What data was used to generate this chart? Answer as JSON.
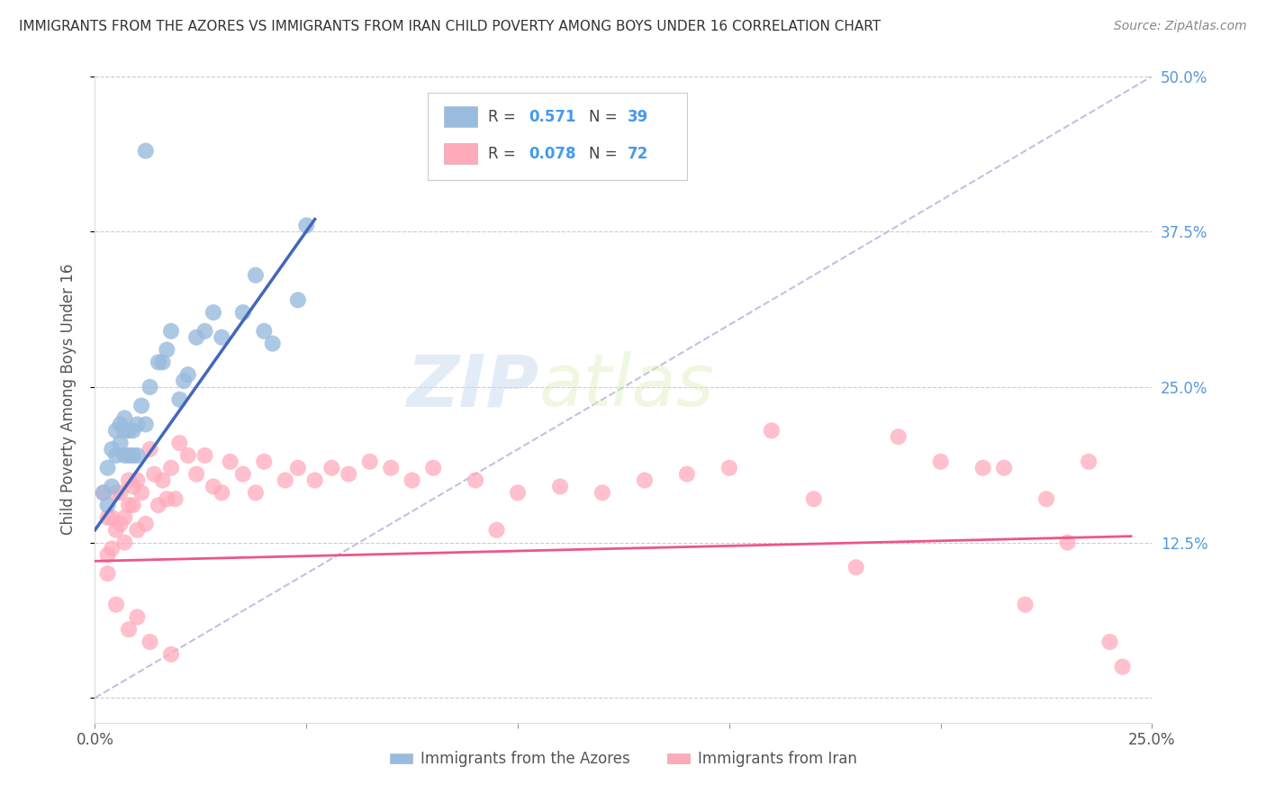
{
  "title": "IMMIGRANTS FROM THE AZORES VS IMMIGRANTS FROM IRAN CHILD POVERTY AMONG BOYS UNDER 16 CORRELATION CHART",
  "source": "Source: ZipAtlas.com",
  "ylabel": "Child Poverty Among Boys Under 16",
  "xlim": [
    0.0,
    0.25
  ],
  "ylim": [
    -0.02,
    0.5
  ],
  "legend_label1": "Immigrants from the Azores",
  "legend_label2": "Immigrants from Iran",
  "r1": 0.571,
  "n1": 39,
  "r2": 0.078,
  "n2": 72,
  "color_azores": "#99BBDD",
  "color_iran": "#FFAABB",
  "color_line_azores": "#4466BB",
  "color_line_iran": "#EE5588",
  "color_diag": "#BBBBDD",
  "watermark_zip": "ZIP",
  "watermark_atlas": "atlas",
  "azores_x": [
    0.002,
    0.003,
    0.003,
    0.004,
    0.004,
    0.005,
    0.005,
    0.006,
    0.006,
    0.007,
    0.007,
    0.007,
    0.008,
    0.008,
    0.009,
    0.009,
    0.01,
    0.01,
    0.011,
    0.012,
    0.013,
    0.015,
    0.016,
    0.017,
    0.018,
    0.02,
    0.021,
    0.022,
    0.024,
    0.026,
    0.028,
    0.03,
    0.035,
    0.038,
    0.04,
    0.042,
    0.048,
    0.05,
    0.012
  ],
  "azores_y": [
    0.165,
    0.185,
    0.155,
    0.2,
    0.17,
    0.215,
    0.195,
    0.22,
    0.205,
    0.215,
    0.195,
    0.225,
    0.215,
    0.195,
    0.215,
    0.195,
    0.22,
    0.195,
    0.235,
    0.22,
    0.25,
    0.27,
    0.27,
    0.28,
    0.295,
    0.24,
    0.255,
    0.26,
    0.29,
    0.295,
    0.31,
    0.29,
    0.31,
    0.34,
    0.295,
    0.285,
    0.32,
    0.38,
    0.44
  ],
  "iran_x": [
    0.002,
    0.003,
    0.003,
    0.004,
    0.004,
    0.005,
    0.005,
    0.006,
    0.006,
    0.007,
    0.007,
    0.008,
    0.008,
    0.009,
    0.009,
    0.01,
    0.01,
    0.011,
    0.012,
    0.013,
    0.014,
    0.015,
    0.016,
    0.017,
    0.018,
    0.019,
    0.02,
    0.022,
    0.024,
    0.026,
    0.028,
    0.03,
    0.032,
    0.035,
    0.038,
    0.04,
    0.045,
    0.048,
    0.052,
    0.056,
    0.06,
    0.065,
    0.07,
    0.075,
    0.08,
    0.09,
    0.095,
    0.1,
    0.11,
    0.12,
    0.13,
    0.14,
    0.15,
    0.16,
    0.17,
    0.18,
    0.19,
    0.2,
    0.21,
    0.215,
    0.22,
    0.225,
    0.23,
    0.235,
    0.24,
    0.243,
    0.003,
    0.005,
    0.008,
    0.01,
    0.013,
    0.018
  ],
  "iran_y": [
    0.165,
    0.145,
    0.115,
    0.145,
    0.12,
    0.135,
    0.165,
    0.14,
    0.165,
    0.125,
    0.145,
    0.175,
    0.155,
    0.17,
    0.155,
    0.175,
    0.135,
    0.165,
    0.14,
    0.2,
    0.18,
    0.155,
    0.175,
    0.16,
    0.185,
    0.16,
    0.205,
    0.195,
    0.18,
    0.195,
    0.17,
    0.165,
    0.19,
    0.18,
    0.165,
    0.19,
    0.175,
    0.185,
    0.175,
    0.185,
    0.18,
    0.19,
    0.185,
    0.175,
    0.185,
    0.175,
    0.135,
    0.165,
    0.17,
    0.165,
    0.175,
    0.18,
    0.185,
    0.215,
    0.16,
    0.105,
    0.21,
    0.19,
    0.185,
    0.185,
    0.075,
    0.16,
    0.125,
    0.19,
    0.045,
    0.025,
    0.1,
    0.075,
    0.055,
    0.065,
    0.045,
    0.035
  ],
  "azores_line_x0": 0.0,
  "azores_line_y0": 0.135,
  "azores_line_x1": 0.052,
  "azores_line_y1": 0.385,
  "iran_line_x0": 0.0,
  "iran_line_y0": 0.11,
  "iran_line_x1": 0.245,
  "iran_line_y1": 0.13
}
